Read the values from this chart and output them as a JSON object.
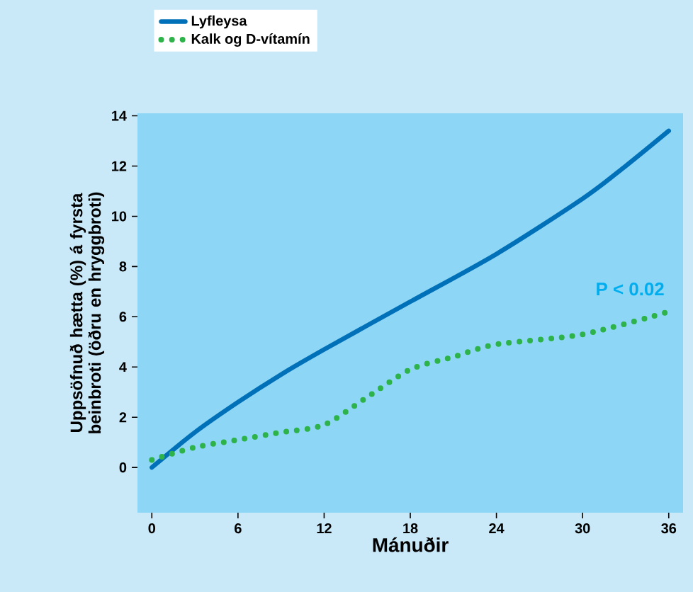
{
  "chart_data": {
    "type": "line",
    "xlabel": "Mánuðir",
    "ylabel": "Uppsöfnuð hætta (%) á fyrsta beinbroti (öðru en hryggbroti)",
    "annotations": [
      "P < 0.02"
    ],
    "xlim": [
      -1,
      37
    ],
    "ylim": [
      -1.8,
      14.1
    ],
    "xticks": [
      0,
      6,
      12,
      18,
      24,
      30,
      36
    ],
    "yticks": [
      0,
      2,
      4,
      6,
      8,
      10,
      12,
      14
    ],
    "legend": "top",
    "marker": "none",
    "series": [
      {
        "name": "Lyfleysa",
        "color": "#0070b8",
        "line_style": "solid",
        "x": [
          0,
          3,
          6,
          9,
          12,
          18,
          24,
          30,
          33,
          36
        ],
        "values": [
          0,
          1.4,
          2.6,
          3.7,
          4.7,
          6.6,
          8.5,
          10.7,
          12.0,
          13.4
        ]
      },
      {
        "name": "Kalk og D-vítamín",
        "color": "#2db34a",
        "line_style": "dotted",
        "x": [
          0,
          3,
          6,
          9,
          12,
          15,
          18,
          21,
          24,
          30,
          36
        ],
        "values": [
          0.3,
          0.8,
          1.1,
          1.4,
          1.7,
          2.8,
          3.9,
          4.4,
          4.9,
          5.3,
          6.2
        ]
      }
    ]
  }
}
